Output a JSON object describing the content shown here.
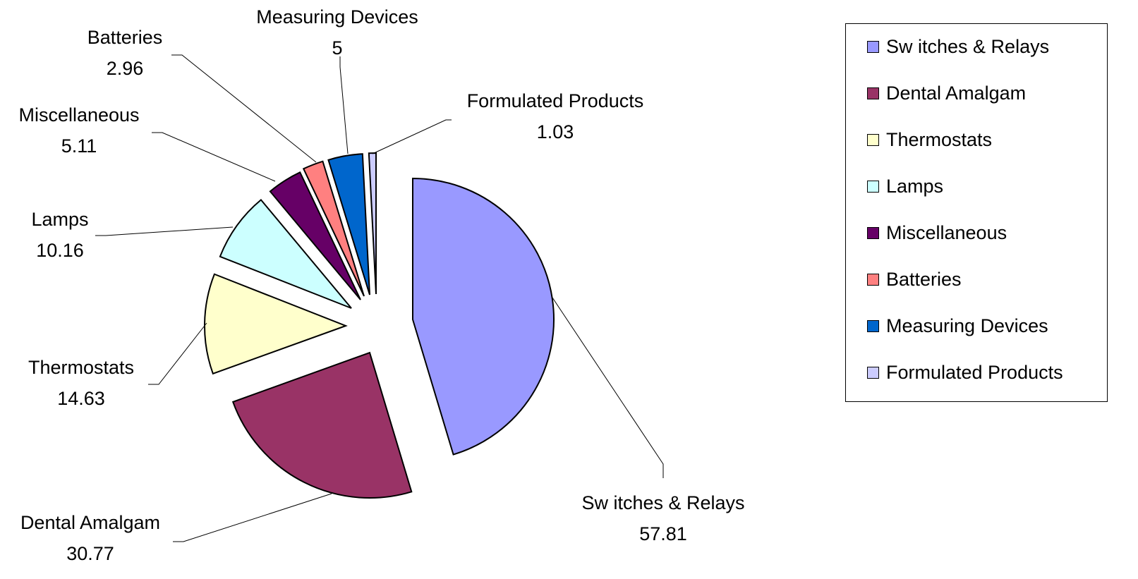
{
  "chart_data": {
    "type": "pie",
    "exploded": true,
    "legend_position": "right",
    "slices": [
      {
        "label_top": "Sw itches & Relays",
        "legend_label": "Sw itches & Relays",
        "value_text": "57.81",
        "value": 57.81,
        "color": "#9999FF"
      },
      {
        "label_top": "Dental Amalgam",
        "legend_label": "Dental Amalgam",
        "value_text": "30.77",
        "value": 30.77,
        "color": "#993366"
      },
      {
        "label_top": "Thermostats",
        "legend_label": "Thermostats",
        "value_text": "14.63",
        "value": 14.63,
        "color": "#FFFFCC"
      },
      {
        "label_top": "Lamps",
        "legend_label": "Lamps",
        "value_text": "10.16",
        "value": 10.16,
        "color": "#CCFFFF"
      },
      {
        "label_top": "Miscellaneous",
        "legend_label": "Miscellaneous",
        "value_text": "5.11",
        "value": 5.11,
        "color": "#660066"
      },
      {
        "label_top": "Batteries",
        "legend_label": "Batteries",
        "value_text": "2.96",
        "value": 2.96,
        "color": "#FF8080"
      },
      {
        "label_top": "Measuring Devices",
        "legend_label": "Measuring Devices",
        "value_text": "5",
        "value": 5,
        "color": "#0066CC"
      },
      {
        "label_top": "Formulated Products",
        "legend_label": "Formulated Products",
        "value_text": "1.03",
        "value": 1.03,
        "color": "#CCCCFF"
      }
    ]
  }
}
